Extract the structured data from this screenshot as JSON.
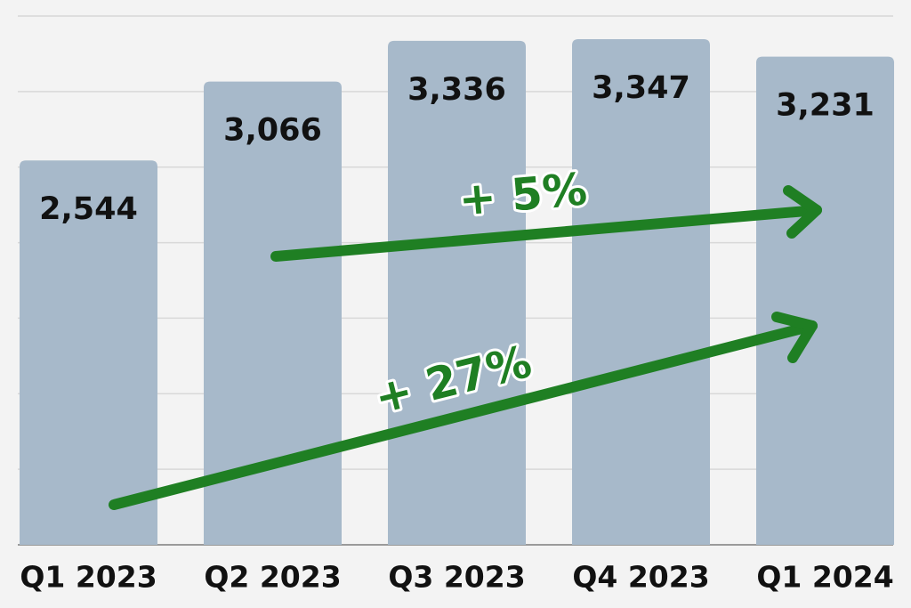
{
  "chart_data": {
    "type": "bar",
    "categories": [
      "Q1 2023",
      "Q2 2023",
      "Q3 2023",
      "Q4 2023",
      "Q1 2024"
    ],
    "values": [
      2544,
      3066,
      3336,
      3347,
      3231
    ],
    "value_labels": [
      "2,544",
      "3,066",
      "3,336",
      "3,347",
      "3,231"
    ],
    "color": "#a7b9ca",
    "ylim": [
      0,
      3500
    ],
    "yticks": [
      0,
      500,
      1000,
      1500,
      2000,
      2500,
      3000,
      3500
    ],
    "grid": true,
    "annotations": [
      "+ 5%",
      "+ 27%"
    ]
  }
}
